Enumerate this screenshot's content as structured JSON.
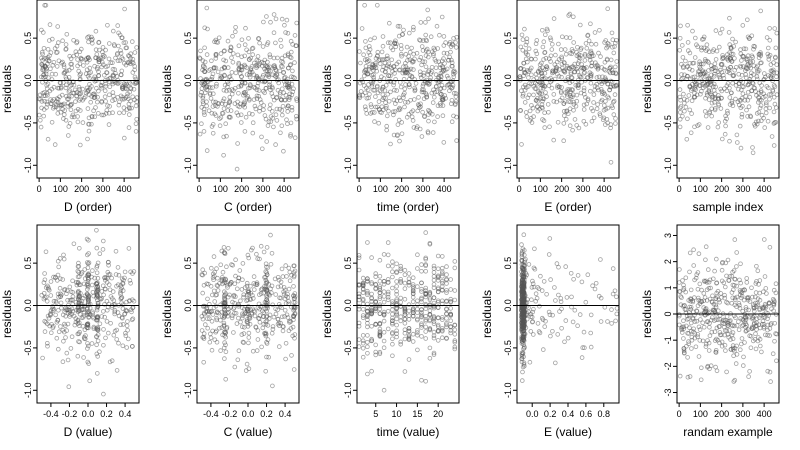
{
  "chart_data": [
    {
      "type": "scatter",
      "xlabel": "D (order)",
      "ylabel": "residuals",
      "xlim": [
        -10,
        470
      ],
      "ylim": [
        -1.15,
        0.95
      ],
      "xticks": [
        0,
        100,
        200,
        300,
        400
      ],
      "xtick_labels": [
        "0",
        "100",
        "200",
        "300",
        "400"
      ],
      "yticks": [
        -1.0,
        -0.5,
        0.0,
        0.5
      ],
      "ytick_labels": [
        "-1.0",
        "-0.5",
        "0.0",
        "0.5"
      ],
      "hline": 0,
      "x_domain": [
        0,
        460
      ],
      "y_spread": 0.3,
      "x_distribution": "uniform",
      "seed": 11
    },
    {
      "type": "scatter",
      "xlabel": "C (order)",
      "ylabel": "residuals",
      "xlim": [
        -10,
        470
      ],
      "ylim": [
        -1.15,
        0.95
      ],
      "xticks": [
        0,
        100,
        200,
        300,
        400
      ],
      "xtick_labels": [
        "0",
        "100",
        "200",
        "300",
        "400"
      ],
      "yticks": [
        -1.0,
        -0.5,
        0.0,
        0.5
      ],
      "ytick_labels": [
        "-1.0",
        "-0.5",
        "0.0",
        "0.5"
      ],
      "hline": 0,
      "x_domain": [
        0,
        460
      ],
      "y_spread": 0.3,
      "x_distribution": "uniform",
      "seed": 23
    },
    {
      "type": "scatter",
      "xlabel": "time (order)",
      "ylabel": "residuals",
      "xlim": [
        -10,
        470
      ],
      "ylim": [
        -1.15,
        0.95
      ],
      "xticks": [
        0,
        100,
        200,
        300,
        400
      ],
      "xtick_labels": [
        "0",
        "100",
        "200",
        "300",
        "400"
      ],
      "yticks": [
        -1.0,
        -0.5,
        0.0,
        0.5
      ],
      "ytick_labels": [
        "-1.0",
        "-0.5",
        "0.0",
        "0.5"
      ],
      "hline": 0,
      "x_domain": [
        0,
        460
      ],
      "y_spread": 0.3,
      "x_distribution": "uniform",
      "seed": 37
    },
    {
      "type": "scatter",
      "xlabel": "E (order)",
      "ylabel": "residuals",
      "xlim": [
        -10,
        470
      ],
      "ylim": [
        -1.15,
        0.95
      ],
      "xticks": [
        0,
        100,
        200,
        300,
        400
      ],
      "xtick_labels": [
        "0",
        "100",
        "200",
        "300",
        "400"
      ],
      "yticks": [
        -1.0,
        -0.5,
        0.0,
        0.5
      ],
      "ytick_labels": [
        "-1.0",
        "-0.5",
        "0.0",
        "0.5"
      ],
      "hline": 0,
      "x_domain": [
        0,
        460
      ],
      "y_spread": 0.3,
      "x_distribution": "uniform",
      "seed": 41
    },
    {
      "type": "scatter",
      "xlabel": "sample index",
      "ylabel": "residuals",
      "xlim": [
        -10,
        470
      ],
      "ylim": [
        -1.15,
        0.95
      ],
      "xticks": [
        0,
        100,
        200,
        300,
        400
      ],
      "xtick_labels": [
        "0",
        "100",
        "200",
        "300",
        "400"
      ],
      "yticks": [
        -1.0,
        -0.5,
        0.0,
        0.5
      ],
      "ytick_labels": [
        "-1.0",
        "-0.5",
        "0.0",
        "0.5"
      ],
      "hline": 0,
      "x_domain": [
        0,
        460
      ],
      "y_spread": 0.3,
      "x_distribution": "uniform",
      "seed": 53
    },
    {
      "type": "scatter",
      "xlabel": "D (value)",
      "ylabel": "residuals",
      "xlim": [
        -0.55,
        0.55
      ],
      "ylim": [
        -1.15,
        0.95
      ],
      "xticks": [
        -0.4,
        -0.2,
        0.0,
        0.2,
        0.4
      ],
      "xtick_labels": [
        "-0.4",
        "-0.2",
        "0.0",
        "0.2",
        "0.4"
      ],
      "yticks": [
        -1.0,
        -0.5,
        0.0,
        0.5
      ],
      "ytick_labels": [
        "-1.0",
        "-0.5",
        "0.0",
        "0.5"
      ],
      "hline": 0,
      "x_domain": [
        -0.5,
        0.5
      ],
      "y_spread": 0.3,
      "x_distribution": "uniform_clusters",
      "clusters": [
        -0.1,
        0.0,
        0.1
      ],
      "seed": 61
    },
    {
      "type": "scatter",
      "xlabel": "C (value)",
      "ylabel": "residuals",
      "xlim": [
        -0.55,
        0.55
      ],
      "ylim": [
        -1.15,
        0.95
      ],
      "xticks": [
        -0.4,
        -0.2,
        0.0,
        0.2,
        0.4
      ],
      "xtick_labels": [
        "-0.4",
        "-0.2",
        "0.0",
        "0.2",
        "0.4"
      ],
      "yticks": [
        -1.0,
        -0.5,
        0.0,
        0.5
      ],
      "ytick_labels": [
        "-1.0",
        "-0.5",
        "0.0",
        "0.5"
      ],
      "hline": 0,
      "x_domain": [
        -0.5,
        0.5
      ],
      "y_spread": 0.3,
      "x_distribution": "uniform_clusters",
      "clusters": [
        -0.25,
        0.0,
        0.2,
        0.5
      ],
      "seed": 71
    },
    {
      "type": "scatter",
      "xlabel": "time (value)",
      "ylabel": "residuals",
      "xlim": [
        0.5,
        25
      ],
      "ylim": [
        -1.15,
        0.95
      ],
      "xticks": [
        5,
        10,
        15,
        20
      ],
      "xtick_labels": [
        "5",
        "10",
        "15",
        "20"
      ],
      "yticks": [
        -1.0,
        -0.5,
        0.0,
        0.5
      ],
      "ytick_labels": [
        "-1.0",
        "-0.5",
        "0.0",
        "0.5"
      ],
      "hline": 0,
      "x_domain": [
        1,
        24
      ],
      "y_spread": 0.3,
      "x_distribution": "integer",
      "seed": 83
    },
    {
      "type": "scatter",
      "xlabel": "E (value)",
      "ylabel": "residuals",
      "xlim": [
        -0.17,
        0.97
      ],
      "ylim": [
        -1.15,
        0.95
      ],
      "xticks": [
        0.0,
        0.2,
        0.4,
        0.6,
        0.8
      ],
      "xtick_labels": [
        "0.0",
        "0.2",
        "0.4",
        "0.6",
        "0.8"
      ],
      "yticks": [
        -1.0,
        -0.5,
        0.0,
        0.5
      ],
      "ytick_labels": [
        "-1.0",
        "-0.5",
        "0.0",
        "0.5"
      ],
      "hline": 0,
      "x_domain": [
        -0.12,
        0.95
      ],
      "y_spread": 0.3,
      "x_distribution": "skewed_left",
      "seed": 97
    },
    {
      "type": "scatter",
      "xlabel": "randam example",
      "ylabel": "residuals",
      "xlim": [
        -10,
        470
      ],
      "ylim": [
        -3.4,
        3.4
      ],
      "xticks": [
        0,
        100,
        200,
        300,
        400
      ],
      "xtick_labels": [
        "0",
        "100",
        "200",
        "300",
        "400"
      ],
      "yticks": [
        -3,
        -2,
        -1,
        0,
        1,
        2,
        3
      ],
      "ytick_labels": [
        "-3",
        "-2",
        "-1",
        "0",
        "1",
        "2",
        "3"
      ],
      "hline": 0,
      "x_domain": [
        0,
        460
      ],
      "y_spread": 1.0,
      "x_distribution": "uniform",
      "seed": 101
    }
  ]
}
